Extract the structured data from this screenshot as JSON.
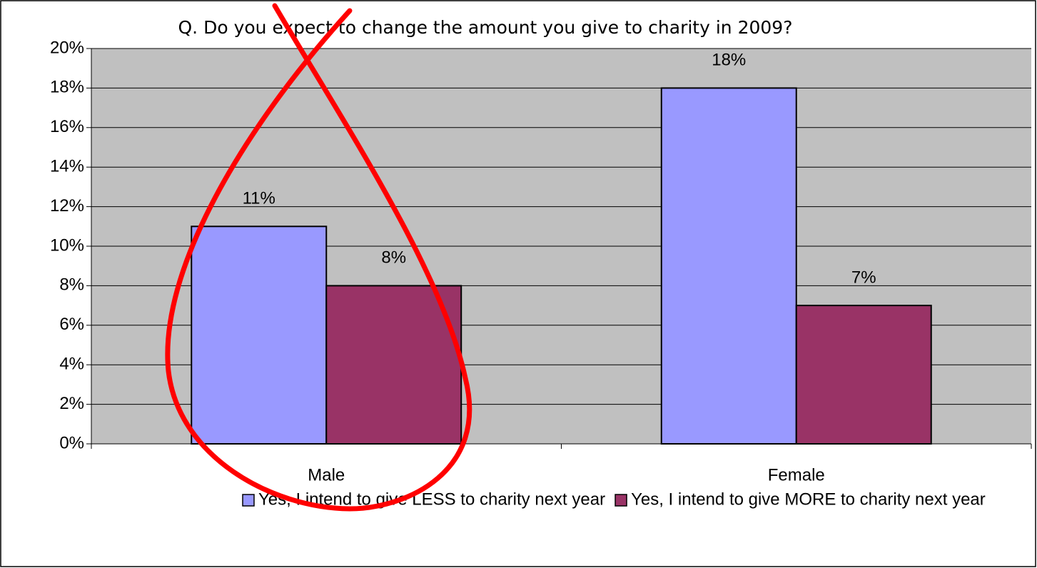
{
  "chart_data": {
    "type": "bar",
    "title": "Q. Do you expect to change the amount you give to charity in 2009?",
    "categories": [
      "Male",
      "Female"
    ],
    "series": [
      {
        "name": "Yes, I intend to give LESS to charity next year",
        "color": "#9999ff",
        "values": [
          11,
          18
        ],
        "value_labels": [
          "11%",
          "18%"
        ]
      },
      {
        "name": "Yes, I intend to give MORE to charity next year",
        "color": "#993366",
        "values": [
          8,
          7
        ],
        "value_labels": [
          "8%",
          "7%"
        ]
      }
    ],
    "ylim": [
      0,
      20
    ],
    "yticks": [
      {
        "value": 0,
        "label": "0%"
      },
      {
        "value": 2,
        "label": "2%"
      },
      {
        "value": 4,
        "label": "4%"
      },
      {
        "value": 6,
        "label": "6%"
      },
      {
        "value": 8,
        "label": "8%"
      },
      {
        "value": 10,
        "label": "10%"
      },
      {
        "value": 12,
        "label": "12%"
      },
      {
        "value": 14,
        "label": "14%"
      },
      {
        "value": 16,
        "label": "16%"
      },
      {
        "value": 18,
        "label": "18%"
      },
      {
        "value": 20,
        "label": "20%"
      }
    ],
    "grid": true,
    "legend": "bottom",
    "plot_background": "#c0c0c0"
  }
}
